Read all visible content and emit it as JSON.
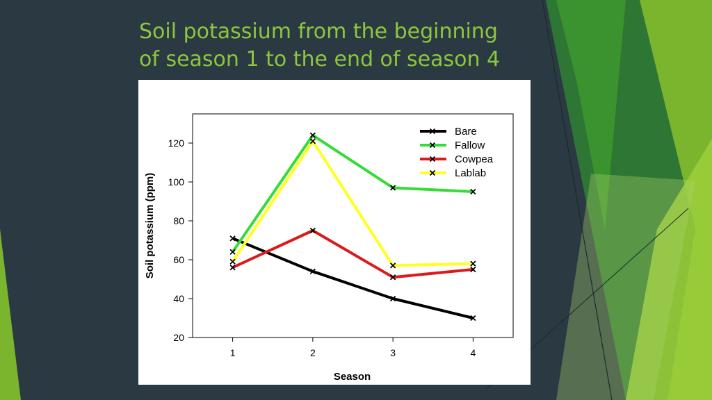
{
  "slide": {
    "title": "Soil potassium from the beginning of season 1 to the end of season 4"
  },
  "colors": {
    "background": "#2b3a42",
    "title": "#8dc63f",
    "accent_green": "#8dc63f"
  },
  "chart_data": {
    "type": "line",
    "title": "",
    "xlabel": "Season",
    "ylabel": "Soil potassium (ppm)",
    "x": [
      1,
      2,
      3,
      4
    ],
    "xlim": [
      0.5,
      4.5
    ],
    "ylim": [
      20,
      135
    ],
    "yticks": [
      20,
      40,
      60,
      80,
      100,
      120
    ],
    "xticks": [
      1,
      2,
      3,
      4
    ],
    "grid": false,
    "legend": "top-right",
    "marker": "x",
    "series": [
      {
        "name": "Bare",
        "color": "#000000",
        "values": [
          71,
          54,
          40,
          30
        ]
      },
      {
        "name": "Fallow",
        "color": "#33dd33",
        "values": [
          64,
          124,
          97,
          95
        ]
      },
      {
        "name": "Cowpea",
        "color": "#dd1a1a",
        "values": [
          56,
          75,
          51,
          55
        ]
      },
      {
        "name": "Lablab",
        "color": "#ffff22",
        "values": [
          59,
          121,
          57,
          58
        ]
      }
    ]
  }
}
